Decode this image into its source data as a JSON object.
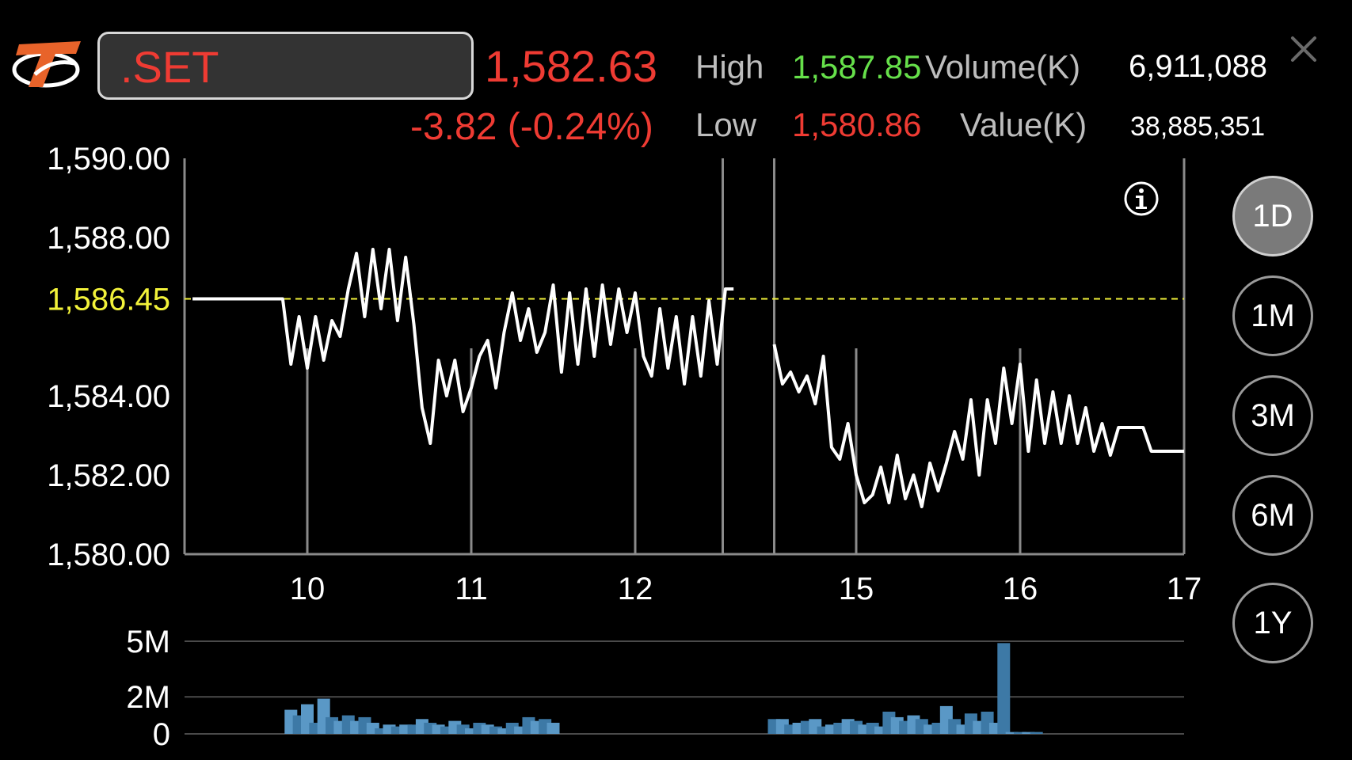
{
  "header": {
    "symbol": ".SET",
    "last_price": "1,582.63",
    "change": "-3.82 (-0.24%)",
    "high_label": "High",
    "high_value": "1,587.85",
    "low_label": "Low",
    "low_value": "1,580.86",
    "volume_label": "Volume(K)",
    "volume_value": "6,911,088",
    "value_label": "Value(K)",
    "value_value": "38,885,351"
  },
  "icons": {
    "logo": "brand-t-logo",
    "close": "close-icon",
    "info": "info-icon"
  },
  "periods": [
    {
      "label": "1D",
      "active": true
    },
    {
      "label": "1M",
      "active": false
    },
    {
      "label": "3M",
      "active": false
    },
    {
      "label": "6M",
      "active": false
    },
    {
      "label": "1Y",
      "active": false
    }
  ],
  "colors": {
    "up": "#66e04a",
    "down": "#ef3b33",
    "prev_close": "#f2f23a",
    "line": "#ffffff",
    "volume_bar": "#4a88b8",
    "logo": "#e8632a"
  },
  "chart_data": [
    {
      "type": "line",
      "ylim": [
        1580,
        1590
      ],
      "y_ticks": [
        "1,580.00",
        "1,582.00",
        "1,584.00",
        "1,588.00",
        "1,590.00"
      ],
      "y_tick_values": [
        1580,
        1582,
        1584,
        1588,
        1590
      ],
      "reference_line": {
        "value": 1586.45,
        "label": "1,586.45"
      },
      "x_ticks": [
        "10",
        "11",
        "12",
        "15",
        "16",
        "17"
      ],
      "x_tick_hours": [
        10,
        11,
        12,
        15,
        16,
        17
      ],
      "sessions": [
        {
          "start": 9.3,
          "end": 12.5
        },
        {
          "start": 14.5,
          "end": 17.0
        }
      ],
      "series": [
        {
          "segments": [
            [
              [
                9.3,
                1586.45
              ],
              [
                9.85,
                1586.45
              ],
              [
                9.9,
                1584.8
              ],
              [
                9.95,
                1586.0
              ],
              [
                10.0,
                1584.7
              ],
              [
                10.05,
                1586.0
              ],
              [
                10.1,
                1584.9
              ],
              [
                10.15,
                1585.9
              ],
              [
                10.2,
                1585.5
              ],
              [
                10.25,
                1586.7
              ],
              [
                10.3,
                1587.6
              ],
              [
                10.35,
                1586.0
              ],
              [
                10.4,
                1587.7
              ],
              [
                10.45,
                1586.2
              ],
              [
                10.5,
                1587.7
              ],
              [
                10.55,
                1585.9
              ],
              [
                10.6,
                1587.5
              ],
              [
                10.65,
                1585.8
              ],
              [
                10.7,
                1583.7
              ],
              [
                10.75,
                1582.8
              ],
              [
                10.8,
                1584.9
              ],
              [
                10.85,
                1584.0
              ],
              [
                10.9,
                1584.9
              ],
              [
                10.95,
                1583.6
              ],
              [
                11.0,
                1584.2
              ],
              [
                11.05,
                1585.0
              ],
              [
                11.1,
                1585.4
              ],
              [
                11.15,
                1584.2
              ],
              [
                11.2,
                1585.6
              ],
              [
                11.25,
                1586.6
              ],
              [
                11.3,
                1585.4
              ],
              [
                11.35,
                1586.2
              ],
              [
                11.4,
                1585.1
              ],
              [
                11.45,
                1585.6
              ],
              [
                11.5,
                1586.8
              ],
              [
                11.55,
                1584.6
              ],
              [
                11.6,
                1586.6
              ],
              [
                11.65,
                1584.8
              ],
              [
                11.7,
                1586.7
              ],
              [
                11.75,
                1585.0
              ],
              [
                11.8,
                1586.8
              ],
              [
                11.85,
                1585.3
              ],
              [
                11.9,
                1586.7
              ],
              [
                11.95,
                1585.6
              ],
              [
                12.0,
                1586.6
              ],
              [
                12.05,
                1585.0
              ],
              [
                12.1,
                1584.5
              ],
              [
                12.15,
                1586.2
              ],
              [
                12.2,
                1584.7
              ],
              [
                12.25,
                1586.0
              ],
              [
                12.3,
                1584.3
              ],
              [
                12.35,
                1586.0
              ],
              [
                12.4,
                1584.5
              ],
              [
                12.45,
                1586.4
              ],
              [
                12.5,
                1584.8
              ],
              [
                12.55,
                1586.7
              ],
              [
                12.6,
                1586.7
              ]
            ],
            [
              [
                14.5,
                1585.3
              ],
              [
                14.55,
                1584.3
              ],
              [
                14.6,
                1584.6
              ],
              [
                14.65,
                1584.1
              ],
              [
                14.7,
                1584.5
              ],
              [
                14.75,
                1583.8
              ],
              [
                14.8,
                1585.0
              ],
              [
                14.85,
                1582.7
              ],
              [
                14.9,
                1582.4
              ],
              [
                14.95,
                1583.3
              ],
              [
                15.0,
                1582.0
              ],
              [
                15.05,
                1581.3
              ],
              [
                15.1,
                1581.5
              ],
              [
                15.15,
                1582.2
              ],
              [
                15.2,
                1581.3
              ],
              [
                15.25,
                1582.5
              ],
              [
                15.3,
                1581.4
              ],
              [
                15.35,
                1582.0
              ],
              [
                15.4,
                1581.2
              ],
              [
                15.45,
                1582.3
              ],
              [
                15.5,
                1581.6
              ],
              [
                15.55,
                1582.3
              ],
              [
                15.6,
                1583.1
              ],
              [
                15.65,
                1582.4
              ],
              [
                15.7,
                1583.9
              ],
              [
                15.75,
                1582.0
              ],
              [
                15.8,
                1583.9
              ],
              [
                15.85,
                1582.8
              ],
              [
                15.9,
                1584.7
              ],
              [
                15.95,
                1583.3
              ],
              [
                16.0,
                1584.8
              ],
              [
                16.05,
                1582.6
              ],
              [
                16.1,
                1584.4
              ],
              [
                16.15,
                1582.8
              ],
              [
                16.2,
                1584.1
              ],
              [
                16.25,
                1582.8
              ],
              [
                16.3,
                1584.0
              ],
              [
                16.35,
                1582.8
              ],
              [
                16.4,
                1583.7
              ],
              [
                16.45,
                1582.6
              ],
              [
                16.5,
                1583.3
              ],
              [
                16.55,
                1582.5
              ],
              [
                16.6,
                1583.2
              ],
              [
                16.75,
                1583.2
              ],
              [
                16.8,
                1582.6
              ],
              [
                17.0,
                1582.6
              ]
            ]
          ]
        }
      ]
    },
    {
      "type": "bar",
      "ylim": [
        0,
        5
      ],
      "y_ticks": [
        "0",
        "2M",
        "5M"
      ],
      "y_tick_values": [
        0,
        2,
        5
      ],
      "x": [
        9.9,
        9.95,
        10.0,
        10.05,
        10.1,
        10.15,
        10.2,
        10.25,
        10.3,
        10.35,
        10.4,
        10.45,
        10.5,
        10.55,
        10.6,
        10.65,
        10.7,
        10.75,
        10.8,
        10.85,
        10.9,
        10.95,
        11.0,
        11.05,
        11.1,
        11.15,
        11.2,
        11.25,
        11.3,
        11.35,
        11.4,
        11.45,
        11.5,
        14.5,
        14.55,
        14.6,
        14.65,
        14.7,
        14.75,
        14.8,
        14.85,
        14.9,
        14.95,
        15.0,
        15.05,
        15.1,
        15.15,
        15.2,
        15.25,
        15.3,
        15.35,
        15.4,
        15.45,
        15.5,
        15.55,
        15.6,
        15.65,
        15.7,
        15.75,
        15.8,
        15.85,
        15.9,
        15.95,
        16.0,
        16.05,
        16.1
      ],
      "values": [
        1.3,
        1.0,
        1.6,
        0.6,
        1.9,
        0.9,
        0.7,
        1.0,
        0.7,
        0.9,
        0.6,
        0.3,
        0.5,
        0.4,
        0.5,
        0.5,
        0.8,
        0.6,
        0.5,
        0.4,
        0.7,
        0.5,
        0.3,
        0.6,
        0.5,
        0.4,
        0.3,
        0.6,
        0.4,
        0.9,
        0.7,
        0.8,
        0.6,
        0.8,
        0.8,
        0.5,
        0.6,
        0.7,
        0.8,
        0.4,
        0.5,
        0.6,
        0.8,
        0.7,
        0.5,
        0.6,
        0.4,
        1.2,
        0.9,
        0.7,
        1.0,
        0.8,
        0.5,
        0.6,
        1.5,
        0.8,
        0.5,
        1.1,
        0.7,
        1.2,
        0.6,
        4.9,
        0.1,
        0.1,
        0.1,
        0.1
      ]
    }
  ]
}
